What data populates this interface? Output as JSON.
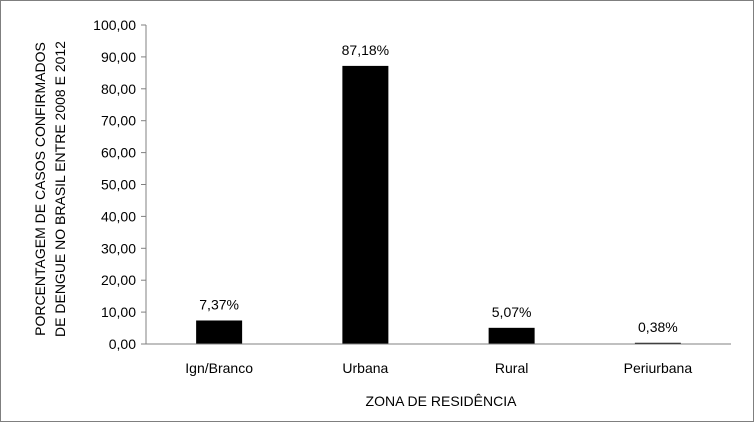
{
  "chart_data": {
    "type": "bar",
    "title": "",
    "xlabel": "ZONA DE RESIDÊNCIA",
    "ylabel_lines": [
      "PORCENTAGEM DE CASOS CONFIRMADOS",
      "DE DENGUE NO BRASIL ENTRE 2008 E 2012"
    ],
    "categories": [
      "Ign/Branco",
      "Urbana",
      "Rural",
      "Periurbana"
    ],
    "values": [
      7.37,
      87.18,
      5.07,
      0.38
    ],
    "data_labels": [
      "7,37%",
      "87,18%",
      "5,07%",
      "0,38%"
    ],
    "ylim": [
      0,
      100
    ],
    "yticks": [
      0,
      10,
      20,
      30,
      40,
      50,
      60,
      70,
      80,
      90,
      100
    ],
    "ytick_labels": [
      "0,00",
      "10,00",
      "20,00",
      "30,00",
      "40,00",
      "50,00",
      "60,00",
      "70,00",
      "80,00",
      "90,00",
      "100,00"
    ],
    "bar_color": "#000000",
    "grid": false,
    "legend": "none"
  }
}
